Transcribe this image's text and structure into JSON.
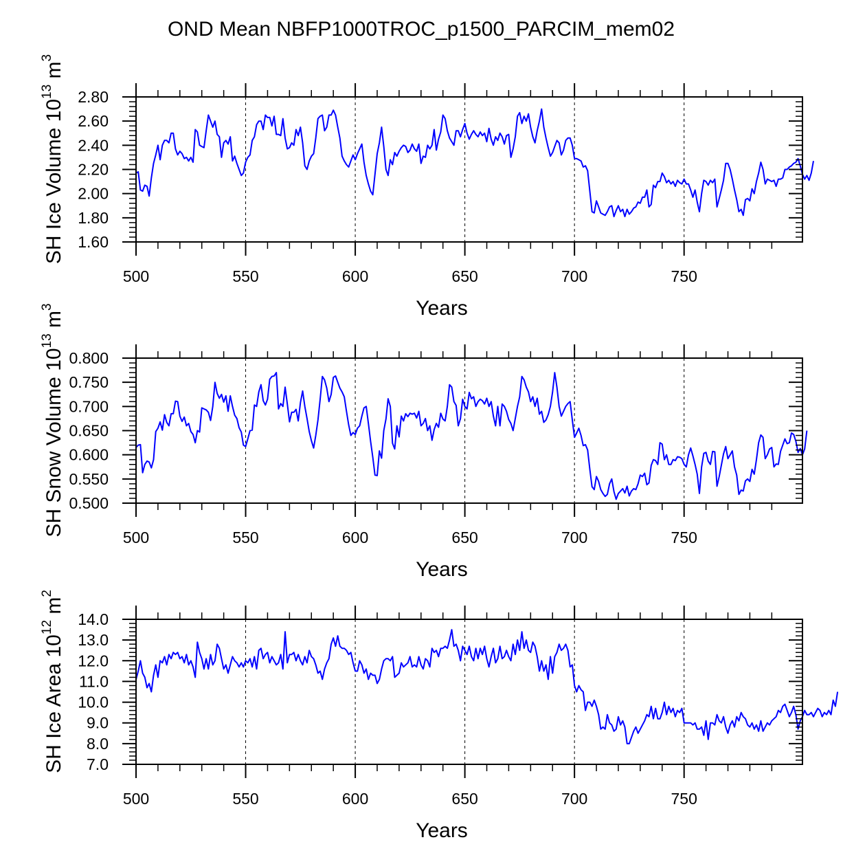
{
  "title": "OND Mean NBFP1000TROC_p1500_PARCIM_mem02",
  "chart_data": [
    {
      "type": "line",
      "title": "OND Mean NBFP1000TROC_p1500_PARCIM_mem02",
      "xlabel": "Years",
      "ylabel_main": "SH Ice Volume 10",
      "ylabel_exp": "13",
      "ylabel_unit": " m",
      "ylabel_unit_exp": "3",
      "xlim": [
        500,
        804
      ],
      "ylim": [
        1.6,
        2.8
      ],
      "xticks": [
        500,
        550,
        600,
        650,
        700,
        750
      ],
      "xtick_labels": [
        "500",
        "550",
        "600",
        "650",
        "700",
        "750"
      ],
      "yticks": [
        1.6,
        1.8,
        2.0,
        2.2,
        2.4,
        2.6,
        2.8
      ],
      "ytick_labels": [
        "1.60",
        "1.80",
        "2.00",
        "2.20",
        "2.40",
        "2.60",
        "2.80"
      ],
      "vlines": [
        550,
        600,
        650,
        700,
        750
      ],
      "color": "#0000ff",
      "x_start": 500,
      "values": [
        2.17,
        2.18,
        2.03,
        2.02,
        2.07,
        2.06,
        1.98,
        2.13,
        2.25,
        2.32,
        2.4,
        2.28,
        2.4,
        2.44,
        2.44,
        2.42,
        2.5,
        2.5,
        2.37,
        2.32,
        2.35,
        2.33,
        2.29,
        2.3,
        2.27,
        2.3,
        2.26,
        2.53,
        2.51,
        2.4,
        2.39,
        2.38,
        2.52,
        2.65,
        2.6,
        2.55,
        2.6,
        2.49,
        2.47,
        2.3,
        2.42,
        2.44,
        2.41,
        2.47,
        2.27,
        2.31,
        2.25,
        2.2,
        2.15,
        2.17,
        2.26,
        2.3,
        2.32,
        2.44,
        2.47,
        2.57,
        2.6,
        2.6,
        2.53,
        2.65,
        2.63,
        2.63,
        2.56,
        2.64,
        2.49,
        2.49,
        2.48,
        2.62,
        2.46,
        2.37,
        2.38,
        2.42,
        2.4,
        2.53,
        2.48,
        2.55,
        2.42,
        2.23,
        2.2,
        2.27,
        2.31,
        2.33,
        2.46,
        2.62,
        2.64,
        2.65,
        2.52,
        2.55,
        2.65,
        2.65,
        2.69,
        2.65,
        2.55,
        2.46,
        2.31,
        2.27,
        2.24,
        2.22,
        2.27,
        2.32,
        2.28,
        2.33,
        2.37,
        2.41,
        2.26,
        2.15,
        2.08,
        2.02,
        1.99,
        2.16,
        2.33,
        2.42,
        2.55,
        2.39,
        2.2,
        2.15,
        2.28,
        2.24,
        2.34,
        2.31,
        2.35,
        2.38,
        2.4,
        2.39,
        2.34,
        2.36,
        2.41,
        2.37,
        2.35,
        2.41,
        2.25,
        2.31,
        2.3,
        2.4,
        2.37,
        2.4,
        2.53,
        2.36,
        2.45,
        2.51,
        2.65,
        2.62,
        2.52,
        2.46,
        2.43,
        2.4,
        2.52,
        2.52,
        2.47,
        2.53,
        2.58,
        2.5,
        2.45,
        2.49,
        2.52,
        2.49,
        2.47,
        2.51,
        2.48,
        2.5,
        2.43,
        2.54,
        2.45,
        2.4,
        2.47,
        2.44,
        2.5,
        2.47,
        2.41,
        2.48,
        2.49,
        2.3,
        2.37,
        2.47,
        2.64,
        2.67,
        2.58,
        2.64,
        2.6,
        2.66,
        2.55,
        2.47,
        2.42,
        2.52,
        2.6,
        2.7,
        2.55,
        2.46,
        2.38,
        2.31,
        2.34,
        2.39,
        2.44,
        2.42,
        2.32,
        2.36,
        2.44,
        2.46,
        2.46,
        2.4,
        2.29,
        2.29,
        2.28,
        2.27,
        2.22,
        2.23,
        2.19,
        2.02,
        1.85,
        1.84,
        1.94,
        1.89,
        1.84,
        1.83,
        1.82,
        1.85,
        1.89,
        1.9,
        1.81,
        1.86,
        1.9,
        1.85,
        1.87,
        1.81,
        1.87,
        1.83,
        1.85,
        1.88,
        1.89,
        1.93,
        1.92,
        1.97,
        1.97,
        2.03,
        1.89,
        1.91,
        2.07,
        2.05,
        2.1,
        2.1,
        2.17,
        2.14,
        2.09,
        2.11,
        2.08,
        2.1,
        2.06,
        2.11,
        2.09,
        2.08,
        2.12,
        2.08,
        2.08,
        2.03,
        1.97,
        2.03,
        1.93,
        1.85,
        2.0,
        2.11,
        2.1,
        2.07,
        2.11,
        2.09,
        2.12,
        1.89,
        1.96,
        2.03,
        2.11,
        2.25,
        2.25,
        2.2,
        2.12,
        2.03,
        1.95,
        1.85,
        1.87,
        1.82,
        1.95,
        1.96,
        1.94,
        2.04,
        2.0,
        2.1,
        2.17,
        2.26,
        2.2,
        2.08,
        2.12,
        2.11,
        2.1,
        2.11,
        2.06,
        2.12,
        2.12,
        2.13,
        2.2,
        2.2,
        2.22,
        2.23,
        2.25,
        2.26,
        2.29,
        2.23,
        2.16,
        2.12,
        2.15,
        2.11,
        2.17,
        2.27
      ]
    },
    {
      "type": "line",
      "xlabel": "Years",
      "ylabel_main": "SH Snow Volume 10",
      "ylabel_exp": "13",
      "ylabel_unit": " m",
      "ylabel_unit_exp": "3",
      "xlim": [
        500,
        804
      ],
      "ylim": [
        0.5,
        0.8
      ],
      "xticks": [
        500,
        550,
        600,
        650,
        700,
        750
      ],
      "xtick_labels": [
        "500",
        "550",
        "600",
        "650",
        "700",
        "750"
      ],
      "yticks": [
        0.5,
        0.55,
        0.6,
        0.65,
        0.7,
        0.75,
        0.8
      ],
      "ytick_labels": [
        "0.500",
        "0.550",
        "0.600",
        "0.650",
        "0.700",
        "0.750",
        "0.800"
      ],
      "vlines": [
        550,
        600,
        650,
        700,
        750
      ],
      "color": "#0000ff",
      "x_start": 500,
      "values": [
        0.615,
        0.62,
        0.621,
        0.563,
        0.58,
        0.587,
        0.585,
        0.573,
        0.59,
        0.648,
        0.655,
        0.668,
        0.651,
        0.683,
        0.667,
        0.66,
        0.685,
        0.685,
        0.711,
        0.71,
        0.68,
        0.669,
        0.678,
        0.66,
        0.665,
        0.648,
        0.642,
        0.625,
        0.65,
        0.647,
        0.697,
        0.695,
        0.693,
        0.688,
        0.671,
        0.7,
        0.75,
        0.727,
        0.717,
        0.725,
        0.709,
        0.722,
        0.69,
        0.722,
        0.7,
        0.682,
        0.675,
        0.656,
        0.647,
        0.62,
        0.617,
        0.633,
        0.65,
        0.651,
        0.703,
        0.7,
        0.73,
        0.745,
        0.712,
        0.703,
        0.715,
        0.756,
        0.762,
        0.763,
        0.77,
        0.695,
        0.706,
        0.7,
        0.74,
        0.705,
        0.668,
        0.688,
        0.688,
        0.694,
        0.67,
        0.708,
        0.732,
        0.7,
        0.675,
        0.648,
        0.629,
        0.614,
        0.64,
        0.672,
        0.715,
        0.762,
        0.755,
        0.738,
        0.71,
        0.725,
        0.76,
        0.763,
        0.75,
        0.738,
        0.73,
        0.72,
        0.69,
        0.662,
        0.64,
        0.646,
        0.642,
        0.655,
        0.66,
        0.68,
        0.697,
        0.7,
        0.665,
        0.628,
        0.595,
        0.558,
        0.557,
        0.608,
        0.593,
        0.65,
        0.674,
        0.716,
        0.7,
        0.624,
        0.612,
        0.66,
        0.637,
        0.68,
        0.67,
        0.685,
        0.679,
        0.686,
        0.684,
        0.686,
        0.676,
        0.69,
        0.66,
        0.665,
        0.675,
        0.65,
        0.66,
        0.63,
        0.652,
        0.665,
        0.657,
        0.686,
        0.674,
        0.67,
        0.7,
        0.745,
        0.74,
        0.71,
        0.702,
        0.66,
        0.675,
        0.715,
        0.7,
        0.695,
        0.729,
        0.716,
        0.72,
        0.7,
        0.71,
        0.715,
        0.712,
        0.705,
        0.717,
        0.7,
        0.71,
        0.68,
        0.66,
        0.7,
        0.66,
        0.705,
        0.7,
        0.69,
        0.673,
        0.665,
        0.65,
        0.675,
        0.7,
        0.72,
        0.762,
        0.755,
        0.74,
        0.73,
        0.71,
        0.72,
        0.7,
        0.717,
        0.684,
        0.69,
        0.667,
        0.672,
        0.683,
        0.7,
        0.73,
        0.77,
        0.74,
        0.7,
        0.68,
        0.69,
        0.7,
        0.706,
        0.71,
        0.672,
        0.636,
        0.645,
        0.655,
        0.64,
        0.619,
        0.621,
        0.61,
        0.57,
        0.534,
        0.528,
        0.555,
        0.545,
        0.528,
        0.52,
        0.514,
        0.518,
        0.54,
        0.55,
        0.524,
        0.508,
        0.52,
        0.525,
        0.53,
        0.521,
        0.535,
        0.515,
        0.525,
        0.53,
        0.528,
        0.54,
        0.558,
        0.555,
        0.562,
        0.538,
        0.542,
        0.578,
        0.59,
        0.588,
        0.58,
        0.625,
        0.622,
        0.59,
        0.6,
        0.58,
        0.58,
        0.59,
        0.588,
        0.596,
        0.595,
        0.592,
        0.58,
        0.575,
        0.6,
        0.614,
        0.598,
        0.58,
        0.56,
        0.52,
        0.575,
        0.603,
        0.605,
        0.587,
        0.58,
        0.607,
        0.606,
        0.535,
        0.555,
        0.578,
        0.602,
        0.617,
        0.592,
        0.6,
        0.608,
        0.575,
        0.558,
        0.518,
        0.527,
        0.525,
        0.546,
        0.55,
        0.545,
        0.57,
        0.56,
        0.59,
        0.625,
        0.641,
        0.636,
        0.592,
        0.6,
        0.612,
        0.615,
        0.575,
        0.581,
        0.58,
        0.607,
        0.62,
        0.633,
        0.623,
        0.625,
        0.645,
        0.642,
        0.628,
        0.605,
        0.613,
        0.6,
        0.612,
        0.65
      ]
    },
    {
      "type": "line",
      "xlabel": "Years",
      "ylabel_main": "SH Ice Area 10",
      "ylabel_exp": "12",
      "ylabel_unit": " m",
      "ylabel_unit_exp": "2",
      "xlim": [
        500,
        804
      ],
      "ylim": [
        7.0,
        14.0
      ],
      "xticks": [
        500,
        550,
        600,
        650,
        700,
        750
      ],
      "xtick_labels": [
        "500",
        "550",
        "600",
        "650",
        "700",
        "750"
      ],
      "yticks": [
        7,
        8,
        9,
        10,
        11,
        12,
        13,
        14
      ],
      "ytick_labels": [
        "7.0",
        "8.0",
        "9.0",
        "10.0",
        "11.0",
        "12.0",
        "13.0",
        "14.0"
      ],
      "vlines": [
        550,
        600,
        650,
        700,
        750
      ],
      "color": "#0000ff",
      "x_start": 500,
      "values": [
        11.1,
        11.5,
        12.0,
        11.4,
        11.2,
        10.7,
        10.9,
        10.5,
        11.3,
        11.8,
        11.2,
        12.0,
        11.9,
        12.2,
        11.8,
        12.3,
        12.1,
        12.4,
        12.3,
        12.4,
        12.1,
        12.2,
        11.9,
        12.3,
        11.8,
        12.0,
        11.7,
        11.2,
        12.9,
        12.4,
        12.1,
        11.6,
        12.1,
        11.6,
        12.3,
        11.8,
        12.0,
        12.8,
        12.6,
        12.1,
        11.6,
        11.8,
        11.4,
        11.8,
        12.2,
        12.0,
        11.9,
        11.7,
        11.9,
        11.7,
        12.0,
        11.9,
        12.1,
        11.7,
        12.2,
        11.6,
        12.5,
        12.6,
        12.1,
        12.3,
        12.4,
        11.9,
        12.2,
        12.0,
        11.8,
        11.9,
        12.3,
        11.6,
        13.4,
        11.9,
        12.3,
        12.3,
        12.4,
        12.0,
        12.3,
        12.0,
        11.8,
        12.2,
        11.9,
        12.5,
        12.2,
        12.1,
        11.8,
        11.4,
        11.5,
        11.1,
        11.6,
        11.9,
        12.1,
        12.8,
        13.1,
        12.7,
        13.2,
        12.7,
        12.6,
        12.6,
        12.5,
        12.3,
        12.4,
        11.9,
        11.5,
        11.5,
        12.0,
        11.8,
        11.4,
        11.6,
        11.1,
        11.4,
        11.3,
        11.3,
        10.9,
        11.1,
        11.6,
        12.0,
        12.1,
        12.1,
        12.0,
        12.2,
        11.2,
        11.3,
        11.4,
        11.9,
        11.7,
        11.8,
        11.9,
        12.2,
        11.7,
        11.8,
        11.7,
        12.2,
        11.8,
        11.6,
        12.1,
        12.0,
        11.7,
        12.6,
        12.4,
        12.5,
        12.2,
        12.6,
        12.6,
        12.7,
        12.6,
        13.0,
        13.5,
        12.7,
        12.8,
        12.5,
        12.0,
        12.7,
        12.5,
        12.3,
        12.7,
        12.2,
        12.0,
        12.6,
        12.1,
        12.6,
        12.3,
        12.7,
        12.1,
        11.7,
        12.2,
        12.6,
        11.9,
        12.1,
        12.7,
        12.1,
        12.2,
        12.5,
        12.2,
        12.0,
        12.8,
        12.3,
        13.0,
        12.5,
        13.4,
        12.6,
        13.0,
        12.5,
        12.4,
        12.9,
        12.7,
        12.2,
        11.5,
        12.0,
        11.5,
        11.8,
        11.1,
        12.2,
        11.4,
        12.2,
        12.4,
        12.8,
        12.5,
        12.6,
        12.8,
        12.5,
        11.7,
        11.8,
        10.8,
        10.5,
        10.8,
        10.6,
        10.5,
        9.6,
        10.0,
        10.0,
        9.8,
        10.1,
        9.8,
        9.4,
        8.7,
        8.8,
        8.7,
        9.4,
        9.0,
        8.9,
        8.6,
        8.7,
        9.3,
        8.9,
        9.1,
        8.8,
        8.0,
        8.0,
        8.3,
        8.6,
        8.8,
        8.5,
        8.7,
        8.9,
        9.1,
        9.4,
        9.3,
        9.8,
        9.2,
        9.7,
        9.2,
        9.2,
        9.5,
        10.0,
        9.4,
        9.8,
        9.5,
        9.7,
        9.3,
        9.6,
        9.5,
        9.7,
        9.0,
        9.0,
        9.0,
        9.0,
        8.9,
        9.0,
        8.7,
        8.7,
        8.8,
        8.4,
        9.1,
        8.2,
        9.0,
        9.0,
        8.9,
        9.4,
        9.1,
        9.0,
        9.3,
        8.8,
        8.5,
        8.9,
        9.1,
        8.8,
        9.3,
        9.1,
        9.5,
        9.3,
        9.2,
        8.9,
        8.8,
        9.0,
        8.7,
        8.9,
        8.6,
        9.1,
        8.6,
        8.8,
        9.0,
        8.9,
        9.1,
        9.2,
        9.3,
        9.6,
        9.5,
        9.8,
        9.9,
        9.6,
        9.3,
        9.5,
        9.8,
        9.4,
        8.7,
        9.1,
        9.3,
        9.6,
        9.4,
        9.4,
        9.5,
        9.3,
        9.5,
        9.7,
        9.6,
        9.3,
        9.5,
        9.4,
        9.6,
        9.4,
        10.1,
        9.8,
        10.5
      ]
    }
  ]
}
